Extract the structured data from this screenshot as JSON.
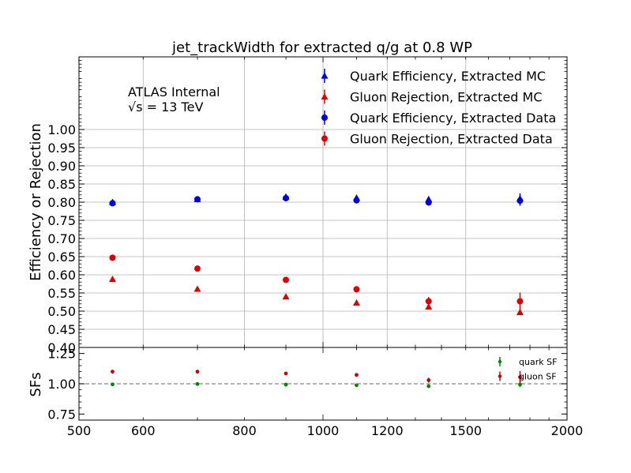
{
  "chart_data": [
    {
      "type": "scatter",
      "panel": "main",
      "title": "jet_trackWidth for extracted q/g at 0.8 WP",
      "xlabel": "",
      "ylabel": "Efficiency or Rejection",
      "xlim": [
        500,
        2000
      ],
      "ylim": [
        0.4,
        1.2
      ],
      "x_ticks": [
        500,
        600,
        800,
        1000,
        1200,
        1500,
        2000
      ],
      "y_ticks": [
        0.4,
        0.45,
        0.5,
        0.55,
        0.6,
        0.65,
        0.7,
        0.75,
        0.8,
        0.85,
        0.9,
        0.95,
        1.0
      ],
      "y_tick_labels": [
        "0.40",
        "0.45",
        "0.50",
        "0.55",
        "0.60",
        "0.65",
        "0.70",
        "0.75",
        "0.80",
        "0.85",
        "0.90",
        "0.95",
        "1.00"
      ],
      "grid": true,
      "annotations": [
        "ATLAS Internal",
        "√s = 13 TeV"
      ],
      "legend_position": "top-right",
      "x": [
        550,
        700,
        900,
        1100,
        1350,
        1750
      ],
      "series": [
        {
          "name": "Quark Efficiency, Extracted MC",
          "marker": "triangle",
          "color": "#0000dd",
          "values": [
            0.8,
            0.808,
            0.815,
            0.812,
            0.808,
            0.81
          ],
          "errors": [
            0.004,
            0.004,
            0.005,
            0.006,
            0.008,
            0.014
          ]
        },
        {
          "name": "Gluon Rejection, Extracted MC",
          "marker": "triangle",
          "color": "#dd0000",
          "values": [
            0.588,
            0.561,
            0.54,
            0.523,
            0.512,
            0.497
          ],
          "errors": [
            0.003,
            0.003,
            0.004,
            0.004,
            0.006,
            0.008
          ]
        },
        {
          "name": "Quark Efficiency, Extracted Data",
          "marker": "circle",
          "color": "#0000dd",
          "values": [
            0.797,
            0.808,
            0.811,
            0.805,
            0.799,
            0.804
          ],
          "errors": [
            0.004,
            0.005,
            0.006,
            0.006,
            0.008,
            0.014
          ]
        },
        {
          "name": "Gluon Rejection, Extracted Data",
          "marker": "circle",
          "color": "#dd0000",
          "values": [
            0.647,
            0.617,
            0.586,
            0.56,
            0.527,
            0.527
          ],
          "errors": [
            0.004,
            0.005,
            0.005,
            0.006,
            0.012,
            0.024
          ]
        }
      ]
    },
    {
      "type": "scatter",
      "panel": "ratio",
      "xlabel": "",
      "ylabel": "SFs",
      "xlim": [
        500,
        2000
      ],
      "ylim": [
        0.7,
        1.3
      ],
      "y_ticks": [
        0.75,
        1.0,
        1.25
      ],
      "y_tick_labels": [
        "0.75",
        "1.00",
        "1.25"
      ],
      "reference_line": 1.0,
      "legend_position": "right",
      "x": [
        550,
        700,
        900,
        1100,
        1350,
        1750
      ],
      "series": [
        {
          "name": "quark SF",
          "marker": "circle",
          "color": "#008800",
          "values": [
            0.995,
            0.998,
            0.993,
            0.988,
            0.98,
            0.993
          ],
          "errors": [
            0.006,
            0.006,
            0.007,
            0.008,
            0.012,
            0.02
          ]
        },
        {
          "name": "gluon SF",
          "marker": "circle",
          "color": "#cc0000",
          "values": [
            1.1,
            1.1,
            1.085,
            1.073,
            1.03,
            1.055
          ],
          "errors": [
            0.006,
            0.007,
            0.008,
            0.01,
            0.02,
            0.05
          ]
        }
      ]
    }
  ]
}
